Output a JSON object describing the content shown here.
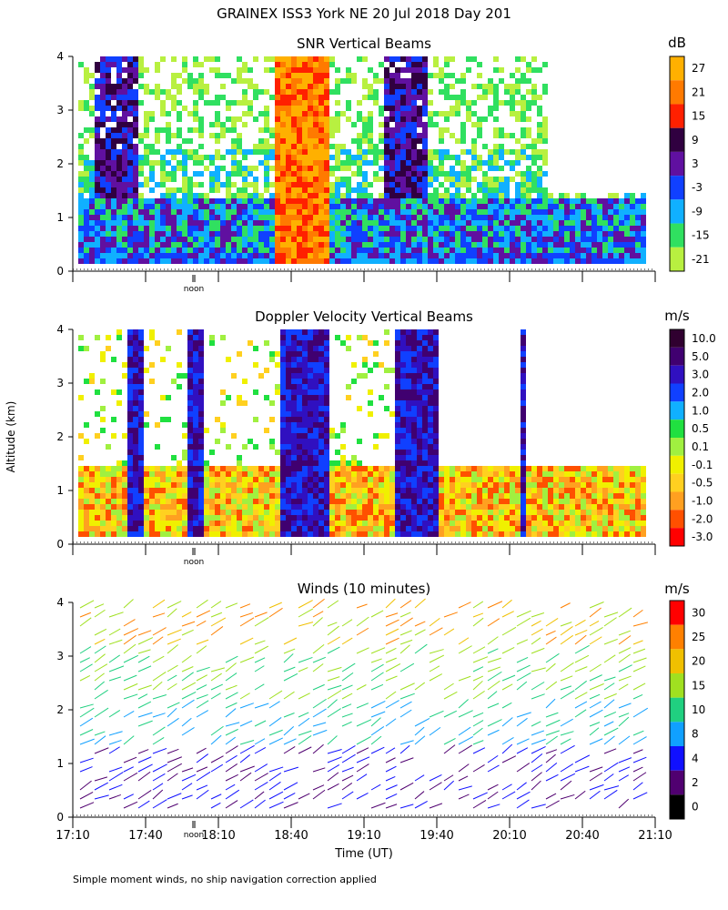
{
  "figure_title": "GRAINEX ISS3 York NE  20 Jul 2018 Day 201",
  "ylabel": "Altitude (km)",
  "xlabel": "Time (UT)",
  "footnote": "Simple moment winds, no ship navigation correction applied",
  "noon_label": "noon",
  "time_ticks": [
    "17:10",
    "17:40",
    "18:10",
    "18:40",
    "19:10",
    "19:40",
    "20:10",
    "20:40",
    "21:10"
  ],
  "chart_data": [
    {
      "type": "heatmap",
      "title": "SNR Vertical Beams",
      "colorbar_unit": "dB",
      "colorbar_labels": [
        "27",
        "21",
        "15",
        "9",
        "3",
        "-3",
        "-9",
        "-15",
        "-21"
      ],
      "colors": [
        "#ffb000",
        "#ff7a00",
        "#ff2000",
        "#300040",
        "#6010a0",
        "#1040ff",
        "#10b0ff",
        "#30e060",
        "#b8f040"
      ],
      "yticks": [
        "0",
        "1",
        "2",
        "3",
        "4"
      ],
      "ylim": [
        0,
        4
      ],
      "xlim": [
        "17:10",
        "21:10"
      ]
    },
    {
      "type": "heatmap",
      "title": "Doppler Velocity Vertical Beams",
      "colorbar_unit": "m/s",
      "colorbar_labels": [
        "10.0",
        "5.0",
        "3.0",
        "2.0",
        "1.0",
        "0.5",
        "0.1",
        "-0.1",
        "-0.5",
        "-1.0",
        "-2.0",
        "-3.0"
      ],
      "colors": [
        "#300030",
        "#400070",
        "#3010c0",
        "#1040ff",
        "#10b0ff",
        "#20e040",
        "#a0f040",
        "#f0f000",
        "#ffd020",
        "#ffa020",
        "#ff5000",
        "#ff0000"
      ],
      "yticks": [
        "0",
        "1",
        "2",
        "3",
        "4"
      ],
      "ylim": [
        0,
        4
      ],
      "xlim": [
        "17:10",
        "21:10"
      ]
    },
    {
      "type": "scatter",
      "title": "Winds (10 minutes)",
      "colorbar_unit": "m/s",
      "colorbar_labels": [
        "30",
        "25",
        "20",
        "15",
        "10",
        "8",
        "4",
        "2",
        "0"
      ],
      "colors": [
        "#ff0000",
        "#ff8000",
        "#f0c000",
        "#a0e020",
        "#20d080",
        "#10a0ff",
        "#1010ff",
        "#500070",
        "#000000"
      ],
      "yticks": [
        "0",
        "1",
        "2",
        "3",
        "4"
      ],
      "ylim": [
        0,
        4
      ],
      "xlim": [
        "17:10",
        "21:10"
      ]
    }
  ]
}
